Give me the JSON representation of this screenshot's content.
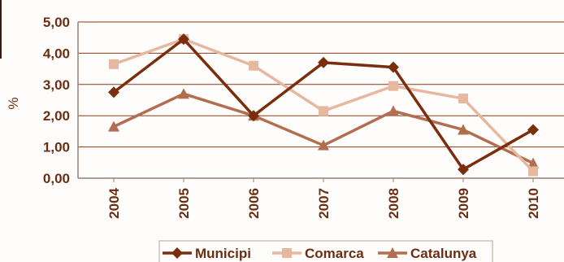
{
  "chart_data": {
    "type": "line",
    "title": "",
    "xlabel": "",
    "ylabel": "%",
    "ylim": [
      0,
      5
    ],
    "y_ticks": [
      "0,00",
      "1,00",
      "2,00",
      "3,00",
      "4,00",
      "5,00"
    ],
    "categories": [
      "2004",
      "2005",
      "2006",
      "2007",
      "2008",
      "2009",
      "2010"
    ],
    "grid": "horizontal",
    "legend_placement": "bottom",
    "series": [
      {
        "name": "Municipi",
        "color": "#7a2e0e",
        "marker": "diamond",
        "values": [
          2.75,
          4.45,
          2.0,
          3.7,
          3.55,
          0.28,
          1.55
        ]
      },
      {
        "name": "Comarca",
        "color": "#e7b8a0",
        "marker": "square",
        "values": [
          3.65,
          4.45,
          3.6,
          2.15,
          2.95,
          2.55,
          0.22
        ]
      },
      {
        "name": "Catalunya",
        "color": "#b36d50",
        "marker": "triangle",
        "values": [
          1.65,
          2.7,
          2.0,
          1.05,
          2.15,
          1.55,
          0.48
        ]
      }
    ]
  }
}
